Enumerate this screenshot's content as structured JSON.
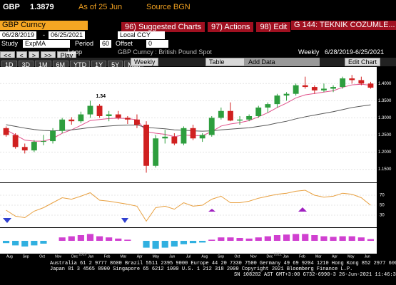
{
  "header": {
    "ticker": "GBP",
    "price": "1.3879",
    "as_of": "As of 25 Jun",
    "source": "Source BGN"
  },
  "toolbar": {
    "security": "GBP Curncy",
    "buttons": [
      "96) Suggested Charts",
      "97) Actions",
      "98) Edit"
    ],
    "page_title": "G 144: TEKNIK COZUMLE..."
  },
  "range": {
    "start": "06/28/2019",
    "separator": "-",
    "end": "06/25/2021",
    "currency": "Local CCY"
  },
  "study": {
    "label": "Study",
    "name": "ExpMA",
    "period_label": "Period",
    "period": "60",
    "offset_label": "Offset",
    "offset": "0"
  },
  "playback": {
    "buttons": [
      "<<",
      "<",
      ">",
      ">>",
      "Play"
    ],
    "loop": "Loop",
    "chart_title": "GBP Curncy : British Pound Spot",
    "frequency": "Weekly",
    "range_text": "6/28/2019-6/25/2021"
  },
  "periods": {
    "buttons": [
      "1D",
      "3D",
      "1M",
      "6M",
      "YTD",
      "1Y",
      "5Y",
      "Max"
    ],
    "frequency": "Weekly",
    "table": "Table",
    "add_data": "Add Data",
    "edit_chart": "Edit Chart"
  },
  "chart": {
    "type": "candlestick",
    "annotation": "1.34",
    "ylim": [
      1.12,
      1.44
    ],
    "yticks": [
      {
        "value": 1.15,
        "label": "1.1500"
      },
      {
        "value": 1.2,
        "label": "1.2000"
      },
      {
        "value": 1.25,
        "label": "1.2500"
      },
      {
        "value": 1.3,
        "label": "1.3000"
      },
      {
        "value": 1.35,
        "label": "1.3500"
      },
      {
        "value": 1.4,
        "label": "1.4000"
      }
    ],
    "up_color": "#2e9e3e",
    "down_color": "#d02020",
    "candles": [
      [
        1.27,
        1.275,
        1.245,
        1.25
      ],
      [
        1.25,
        1.255,
        1.21,
        1.215
      ],
      [
        1.215,
        1.225,
        1.196,
        1.205
      ],
      [
        1.205,
        1.235,
        1.2,
        1.23
      ],
      [
        1.23,
        1.25,
        1.22,
        1.232
      ],
      [
        1.232,
        1.27,
        1.225,
        1.262
      ],
      [
        1.262,
        1.3,
        1.255,
        1.295
      ],
      [
        1.295,
        1.302,
        1.28,
        1.29
      ],
      [
        1.29,
        1.318,
        1.285,
        1.31
      ],
      [
        1.31,
        1.35,
        1.3,
        1.335
      ],
      [
        1.335,
        1.34,
        1.3,
        1.305
      ],
      [
        1.305,
        1.32,
        1.29,
        1.31
      ],
      [
        1.31,
        1.32,
        1.295,
        1.3
      ],
      [
        1.3,
        1.305,
        1.282,
        1.295
      ],
      [
        1.295,
        1.31,
        1.27,
        1.28
      ],
      [
        1.28,
        1.29,
        1.14,
        1.16
      ],
      [
        1.16,
        1.25,
        1.155,
        1.24
      ],
      [
        1.24,
        1.265,
        1.225,
        1.245
      ],
      [
        1.245,
        1.255,
        1.22,
        1.225
      ],
      [
        1.225,
        1.275,
        1.22,
        1.27
      ],
      [
        1.27,
        1.28,
        1.235,
        1.24
      ],
      [
        1.24,
        1.255,
        1.23,
        1.25
      ],
      [
        1.25,
        1.305,
        1.245,
        1.3
      ],
      [
        1.3,
        1.33,
        1.295,
        1.32
      ],
      [
        1.32,
        1.345,
        1.29,
        1.292
      ],
      [
        1.292,
        1.305,
        1.28,
        1.295
      ],
      [
        1.295,
        1.31,
        1.29,
        1.305
      ],
      [
        1.305,
        1.335,
        1.3,
        1.33
      ],
      [
        1.33,
        1.345,
        1.315,
        1.34
      ],
      [
        1.34,
        1.37,
        1.33,
        1.365
      ],
      [
        1.365,
        1.375,
        1.35,
        1.37
      ],
      [
        1.37,
        1.4,
        1.365,
        1.395
      ],
      [
        1.395,
        1.42,
        1.385,
        1.39
      ],
      [
        1.39,
        1.395,
        1.37,
        1.38
      ],
      [
        1.38,
        1.4,
        1.375,
        1.385
      ],
      [
        1.385,
        1.395,
        1.375,
        1.39
      ],
      [
        1.39,
        1.42,
        1.385,
        1.415
      ],
      [
        1.415,
        1.425,
        1.4,
        1.41
      ],
      [
        1.41,
        1.42,
        1.395,
        1.4
      ],
      [
        1.4,
        1.405,
        1.385,
        1.388
      ]
    ],
    "lines": [
      {
        "color": "#e0508a",
        "values": [
          1.265,
          1.25,
          1.235,
          1.232,
          1.232,
          1.24,
          1.255,
          1.265,
          1.278,
          1.292,
          1.295,
          1.298,
          1.299,
          1.298,
          1.294,
          1.26,
          1.255,
          1.252,
          1.245,
          1.25,
          1.248,
          1.248,
          1.26,
          1.276,
          1.282,
          1.286,
          1.292,
          1.303,
          1.315,
          1.33,
          1.343,
          1.358,
          1.367,
          1.371,
          1.375,
          1.379,
          1.389,
          1.396,
          1.398,
          1.395
        ]
      },
      {
        "color": "#555555",
        "values": [
          1.28,
          1.275,
          1.27,
          1.266,
          1.263,
          1.262,
          1.263,
          1.265,
          1.268,
          1.272,
          1.274,
          1.276,
          1.278,
          1.279,
          1.279,
          1.272,
          1.27,
          1.268,
          1.265,
          1.264,
          1.262,
          1.261,
          1.262,
          1.265,
          1.267,
          1.269,
          1.271,
          1.275,
          1.279,
          1.285,
          1.29,
          1.297,
          1.303,
          1.308,
          1.313,
          1.318,
          1.324,
          1.33,
          1.334,
          1.338
        ]
      }
    ],
    "rsi": {
      "color": "#e8a040",
      "ylim": [
        10,
        90
      ],
      "yticks": [
        30,
        50,
        70
      ],
      "values": [
        40,
        28,
        25,
        38,
        45,
        55,
        65,
        62,
        68,
        75,
        60,
        58,
        55,
        52,
        48,
        18,
        45,
        48,
        42,
        55,
        48,
        50,
        62,
        68,
        55,
        55,
        58,
        64,
        68,
        72,
        74,
        78,
        80,
        70,
        66,
        68,
        74,
        72,
        65,
        50
      ]
    },
    "macd": {
      "pos_color": "#d040d0",
      "neg_color": "#30b0e0",
      "ylim": [
        -0.02,
        0.02
      ],
      "values": [
        -0.004,
        -0.008,
        -0.01,
        -0.008,
        -0.005,
        0,
        0.006,
        0.008,
        0.01,
        0.012,
        0.008,
        0.006,
        0.004,
        0.002,
        0,
        -0.012,
        -0.014,
        -0.012,
        -0.01,
        -0.006,
        -0.004,
        -0.003,
        0.002,
        0.006,
        0.006,
        0.005,
        0.004,
        0.006,
        0.008,
        0.01,
        0.011,
        0.012,
        0.012,
        0.01,
        0.008,
        0.007,
        0.008,
        0.008,
        0.006,
        0.003
      ]
    },
    "x_labels": [
      "Aug",
      "Sep",
      "Oct",
      "Nov",
      "Dec",
      "Jan",
      "Feb",
      "Mar",
      "Apr",
      "May",
      "Jun",
      "Jul",
      "Aug",
      "Sep",
      "Oct",
      "Nov",
      "Dec",
      "Jan",
      "Feb",
      "Mar",
      "Apr",
      "May",
      "Jun"
    ],
    "year_labels": [
      "2020",
      "2021"
    ]
  },
  "footer": {
    "lines": [
      "Australia 61 2 9777 8600 Brazil 5511 2395 9000 Europe 44 20 7330 7500 Germany 49 69 9204 1210 Hong Kong 852 2977 6000",
      "Japan 81 3 4565 8900      Singapore 65 6212 1000      U.S. 1 212 318 2000      Copyright 2021 Bloomberg Finance L.P.",
      "SN 108282 AST  GMT+3:00 G732-6990-3 26-Jun-2021 11:46:30"
    ]
  }
}
